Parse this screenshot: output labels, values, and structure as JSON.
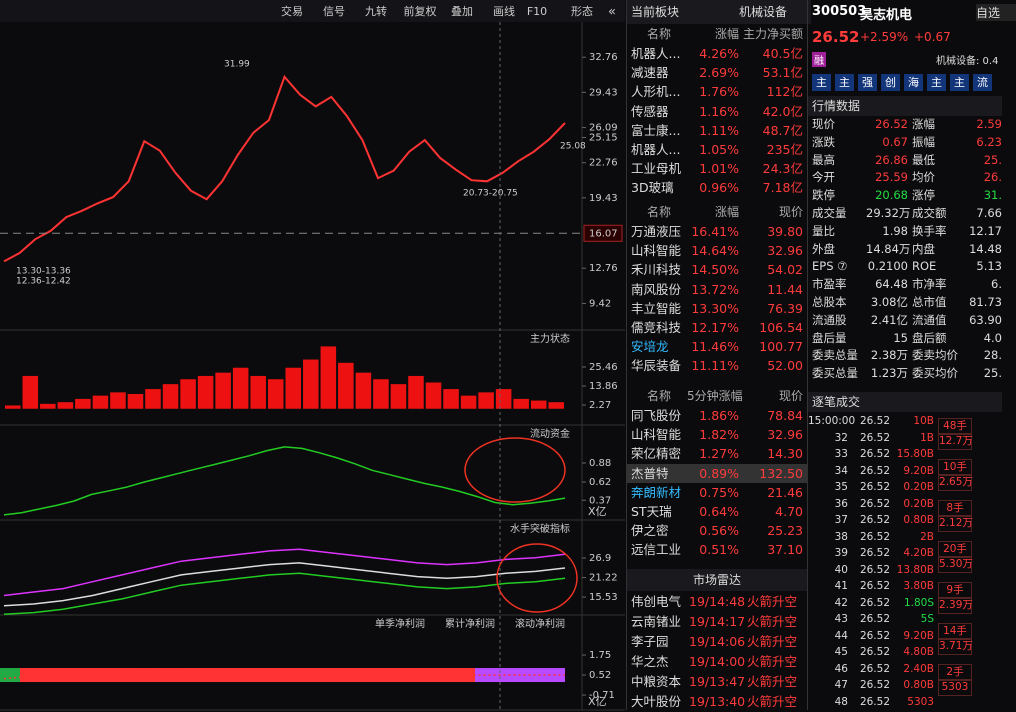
{
  "toolbar": [
    "交易",
    "信号",
    "九转",
    "前复权",
    "叠加",
    "画线",
    "F10",
    "形态"
  ],
  "chart_data": [
    {
      "type": "line",
      "series": [
        {
          "name": null,
          "color": "#ff3333",
          "values": [
            13.4,
            14.2,
            15.5,
            16.3,
            17.6,
            18.2,
            18.9,
            19.5,
            21.0,
            24.8,
            23.9,
            21.8,
            20.1,
            19.3,
            21.0,
            23.5,
            25.6,
            26.8,
            30.9,
            29.2,
            28.1,
            29.0,
            27.2,
            24.9,
            21.3,
            22.0,
            23.8,
            24.9,
            23.2,
            22.1,
            21.1,
            21.0,
            21.8,
            22.9,
            23.8,
            25.0,
            26.52
          ]
        }
      ],
      "ylim": [
        6.9,
        36.1
      ],
      "yticks": [
        32.76,
        29.43,
        26.09,
        25.15,
        22.76,
        19.43,
        12.76,
        9.42
      ],
      "price_marker": 16.07,
      "annotations": [
        "31.99",
        "13.30-13.36",
        "12.36-12.42",
        "20.73-20.75",
        "25.08"
      ]
    },
    {
      "type": "bar",
      "title": "主力状态",
      "color": "#ee1111",
      "values": [
        2,
        20,
        3,
        4,
        6,
        8,
        10,
        9,
        12,
        15,
        18,
        20,
        22,
        25,
        20,
        18,
        25,
        30,
        38,
        28,
        22,
        18,
        15,
        20,
        16,
        12,
        8,
        10,
        12,
        6,
        5,
        4
      ],
      "ylim": [
        -9.9,
        48
      ],
      "yticks": [
        25.46,
        13.86,
        2.27
      ]
    },
    {
      "type": "line",
      "title": "流动资金",
      "unit": "X亿",
      "series": [
        {
          "name": null,
          "color": "#22cc22",
          "values": [
            0.17,
            0.2,
            0.25,
            0.3,
            0.36,
            0.45,
            0.5,
            0.55,
            0.62,
            0.68,
            0.74,
            0.8,
            0.86,
            0.92,
            0.98,
            1.05,
            1.1,
            1.08,
            1.02,
            0.95,
            0.87,
            0.78,
            0.72,
            0.66,
            0.6,
            0.55,
            0.49,
            0.42,
            0.34,
            0.31,
            0.33,
            0.36,
            0.4
          ]
        }
      ],
      "ylim": [
        0.1,
        1.4
      ],
      "yticks": [
        0.88,
        0.62,
        0.37
      ]
    },
    {
      "type": "line",
      "title": "水手突破指标",
      "series": [
        {
          "name": null,
          "color": "#dd33ff",
          "values": [
            16,
            17,
            18,
            20,
            22,
            24,
            26,
            27,
            28,
            29,
            29.5,
            28.5,
            27.5,
            26.5,
            25.5,
            25,
            25.5,
            26.5,
            27,
            28
          ]
        },
        {
          "name": null,
          "color": "#dddddd",
          "values": [
            13,
            13.5,
            14.5,
            16,
            18,
            20,
            22,
            23,
            24,
            25,
            25.5,
            24.5,
            23.5,
            22.5,
            21.5,
            21,
            21.5,
            22.5,
            23,
            24
          ]
        },
        {
          "name": null,
          "color": "#22cc22",
          "values": [
            10.5,
            11,
            12,
            13.5,
            15,
            17,
            19,
            20,
            21,
            22,
            22.5,
            21.5,
            20.5,
            19.5,
            18.5,
            18,
            18.5,
            19.5,
            20,
            21
          ]
        }
      ],
      "ylim": [
        10.3,
        38
      ],
      "yticks": [
        26.9,
        21.22,
        15.53
      ]
    },
    {
      "type": "line",
      "unit": "X亿",
      "series": [
        {
          "name": "单季净利润",
          "color": "#ff3333",
          "values": [
            0.52,
            0.52,
            0.52
          ],
          "colors": [
            "#22aa44",
            "#ff3333",
            "#b84bff"
          ]
        },
        {
          "name": "累计净利润",
          "color": "#cccccc"
        },
        {
          "name": "滚动净利润",
          "color": "#ff3333",
          "values": [
            0.3,
            0.55,
            0.75,
            0.9,
            0.78,
            0.6,
            0.48,
            0.42,
            0.45,
            0.5,
            0.52,
            0.52
          ]
        }
      ],
      "ylim": [
        -1.63,
        4.21
      ],
      "yticks": [
        1.75,
        0.52,
        -0.71
      ]
    }
  ],
  "sectors": {
    "title": "当前板块",
    "current": "机械设备",
    "headers": [
      "名称",
      "涨幅",
      "主力净买额"
    ],
    "rows": [
      [
        "机器人...",
        "4.26%",
        "40.5亿"
      ],
      [
        "减速器",
        "2.69%",
        "53.1亿"
      ],
      [
        "人形机...",
        "1.76%",
        "112亿"
      ],
      [
        "传感器",
        "1.16%",
        "42.0亿"
      ],
      [
        "富士康...",
        "1.11%",
        "48.7亿"
      ],
      [
        "机器人...",
        "1.05%",
        "235亿"
      ],
      [
        "工业母机",
        "1.01%",
        "24.3亿"
      ],
      [
        "3D玻璃",
        "0.96%",
        "7.18亿"
      ]
    ]
  },
  "gainers": {
    "headers": [
      "名称",
      "涨幅",
      "现价"
    ],
    "rows": [
      [
        "万通液压",
        "16.41%",
        "39.80"
      ],
      [
        "山科智能",
        "14.64%",
        "32.96"
      ],
      [
        "禾川科技",
        "14.50%",
        "54.02"
      ],
      [
        "南风股份",
        "13.72%",
        "11.44"
      ],
      [
        "丰立智能",
        "13.30%",
        "76.39"
      ],
      [
        "儒竞科技",
        "12.17%",
        "106.54"
      ],
      [
        "安培龙",
        "11.46%",
        "100.77"
      ],
      [
        "华辰装备",
        "11.11%",
        "52.00"
      ]
    ]
  },
  "speed": {
    "headers": [
      "名称",
      "5分钟涨幅",
      "现价"
    ],
    "rows": [
      [
        "同飞股份",
        "1.86%",
        "78.84"
      ],
      [
        "山科智能",
        "1.82%",
        "32.96"
      ],
      [
        "荣亿精密",
        "1.27%",
        "14.30"
      ],
      [
        "杰普特",
        "0.89%",
        "132.50"
      ],
      [
        "奔朗新材",
        "0.75%",
        "21.46"
      ],
      [
        "ST天瑞",
        "0.64%",
        "4.70"
      ],
      [
        "伊之密",
        "0.56%",
        "25.23"
      ],
      [
        "远信工业",
        "0.51%",
        "37.10"
      ]
    ]
  },
  "radar": {
    "title": "市场雷达",
    "rows": [
      [
        "伟创电气",
        "19/14:48",
        "火箭升空"
      ],
      [
        "云南锗业",
        "19/14:17",
        "火箭升空"
      ],
      [
        "李子园",
        "19/14:06",
        "火箭升空"
      ],
      [
        "华之杰",
        "19/14:00",
        "火箭升空"
      ],
      [
        "中粮资本",
        "19/13:47",
        "火箭升空"
      ],
      [
        "大叶股份",
        "19/13:40",
        "火箭升空"
      ]
    ]
  },
  "quote": {
    "code": "300503",
    "name": "昊志机电",
    "price": "26.52",
    "change_pct": "+2.59%",
    "change": "+0.67",
    "badge": "融",
    "sector": "机械设备: 0.4",
    "add": "自选",
    "tags": [
      "主",
      "主",
      "强",
      "创",
      "海",
      "主",
      "主",
      "流"
    ]
  },
  "stats": {
    "title": "行情数据",
    "rows": [
      [
        "现价",
        "26.52",
        "涨幅",
        "2.59"
      ],
      [
        "涨跌",
        "0.67",
        "振幅",
        "6.23"
      ],
      [
        "最高",
        "26.86",
        "最低",
        "25."
      ],
      [
        "今开",
        "25.59",
        "均价",
        "26."
      ],
      [
        "跌停",
        "20.68",
        "涨停",
        "31."
      ],
      [
        "成交量",
        "29.32万",
        "成交额",
        "7.66"
      ],
      [
        "量比",
        "1.98",
        "换手率",
        "12.17"
      ],
      [
        "外盘",
        "14.84万",
        "内盘",
        "14.48"
      ],
      [
        "EPS ⑦",
        "0.2100",
        "ROE",
        "5.13"
      ],
      [
        "市盈率",
        "64.48",
        "市净率",
        "6."
      ],
      [
        "总股本",
        "3.08亿",
        "总市值",
        "81.73"
      ],
      [
        "流通股",
        "2.41亿",
        "流通值",
        "63.90"
      ],
      [
        "盘后量",
        "15",
        "盘后额",
        "4.0"
      ],
      [
        "委卖总量",
        "2.38万",
        "委卖均价",
        "28."
      ],
      [
        "委买总量",
        "1.23万",
        "委买均价",
        "25."
      ]
    ]
  },
  "trades": {
    "title": "逐笔成交",
    "rows": [
      [
        "15:00:00",
        "26.52",
        "10B"
      ],
      [
        "32",
        "26.52",
        "1B"
      ],
      [
        "33",
        "26.52",
        "15.80B"
      ],
      [
        "34",
        "26.52",
        "9.20B"
      ],
      [
        "35",
        "26.52",
        "0.20B"
      ],
      [
        "36",
        "26.52",
        "0.20B"
      ],
      [
        "37",
        "26.52",
        "0.80B"
      ],
      [
        "38",
        "26.52",
        "2B"
      ],
      [
        "39",
        "26.52",
        "4.20B"
      ],
      [
        "40",
        "26.52",
        "13.80B"
      ],
      [
        "41",
        "26.52",
        "3.80B"
      ],
      [
        "42",
        "26.52",
        "1.80S"
      ],
      [
        "43",
        "26.52",
        "5S"
      ],
      [
        "44",
        "26.52",
        "9.20B"
      ],
      [
        "45",
        "26.52",
        "4.80B"
      ],
      [
        "46",
        "26.52",
        "2.40B"
      ],
      [
        "47",
        "26.52",
        "0.80B"
      ],
      [
        "48",
        "26.52",
        "5303"
      ]
    ],
    "blocks": [
      [
        "48手",
        "12.7万"
      ],
      [
        "10手",
        "2.65万"
      ],
      [
        "8手",
        "2.12万"
      ],
      [
        "20手",
        "5.30万"
      ],
      [
        "9手",
        "2.39万"
      ],
      [
        "14手",
        "3.71万"
      ],
      [
        "2手",
        "5303"
      ]
    ]
  }
}
